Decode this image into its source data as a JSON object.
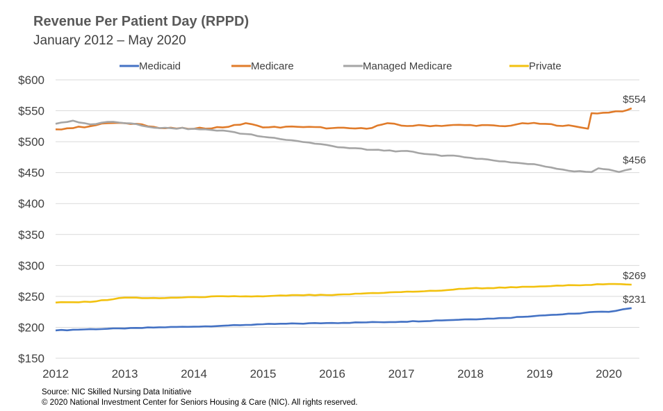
{
  "title": "Revenue Per Patient Day (RPPD)",
  "subtitle": "January  2012 – May 2020",
  "source_line": "Source: NIC Skilled Nursing Data Initiative",
  "copyright_line": "© 2020 National Investment Center for Seniors Housing & Care (NIC).  All rights reserved.",
  "chart_data": {
    "type": "line",
    "title": "Revenue Per Patient Day (RPPD)",
    "subtitle": "January  2012 – May 2020",
    "x_start": "2012-01",
    "x_end": "2020-05",
    "x_ticks": [
      "2012",
      "2013",
      "2014",
      "2015",
      "2016",
      "2017",
      "2018",
      "2019",
      "2020"
    ],
    "y_ticks": [
      "$150",
      "$200",
      "$250",
      "$300",
      "$350",
      "$400",
      "$450",
      "$500",
      "$550",
      "$600"
    ],
    "ylim": [
      150,
      600
    ],
    "grid": true,
    "legend_position": "top",
    "series": [
      {
        "name": "Medicaid",
        "color": "#4472C4",
        "end_label": "$231",
        "values": [
          [
            2012.0,
            195
          ],
          [
            2012.5,
            197
          ],
          [
            2013.0,
            198
          ],
          [
            2013.5,
            200
          ],
          [
            2014.0,
            201
          ],
          [
            2014.5,
            203
          ],
          [
            2015.0,
            205
          ],
          [
            2015.5,
            206
          ],
          [
            2016.0,
            207
          ],
          [
            2016.5,
            208
          ],
          [
            2017.0,
            209
          ],
          [
            2017.5,
            211
          ],
          [
            2018.0,
            213
          ],
          [
            2018.5,
            215
          ],
          [
            2019.0,
            219
          ],
          [
            2019.5,
            222
          ],
          [
            2019.8,
            225
          ],
          [
            2020.0,
            225
          ],
          [
            2020.2,
            229
          ],
          [
            2020.33,
            231
          ]
        ]
      },
      {
        "name": "Medicare",
        "color": "#E07B2A",
        "end_label": "$554",
        "values": [
          [
            2012.0,
            520
          ],
          [
            2012.5,
            525
          ],
          [
            2012.75,
            530
          ],
          [
            2013.0,
            530
          ],
          [
            2013.25,
            528
          ],
          [
            2013.5,
            522
          ],
          [
            2014.0,
            521
          ],
          [
            2014.5,
            524
          ],
          [
            2014.75,
            530
          ],
          [
            2015.0,
            523
          ],
          [
            2015.5,
            524
          ],
          [
            2016.0,
            522
          ],
          [
            2016.5,
            521
          ],
          [
            2016.8,
            530
          ],
          [
            2017.0,
            526
          ],
          [
            2017.5,
            526
          ],
          [
            2018.0,
            527
          ],
          [
            2018.5,
            525
          ],
          [
            2018.75,
            530
          ],
          [
            2019.0,
            529
          ],
          [
            2019.5,
            525
          ],
          [
            2019.7,
            521
          ],
          [
            2019.75,
            546
          ],
          [
            2020.0,
            547
          ],
          [
            2020.2,
            549
          ],
          [
            2020.33,
            554
          ]
        ]
      },
      {
        "name": "Managed Medicare",
        "color": "#A5A5A5",
        "end_label": "$456",
        "values": [
          [
            2012.0,
            529
          ],
          [
            2012.25,
            534
          ],
          [
            2012.5,
            528
          ],
          [
            2012.75,
            532
          ],
          [
            2013.0,
            530
          ],
          [
            2013.5,
            522
          ],
          [
            2014.0,
            521
          ],
          [
            2014.5,
            517
          ],
          [
            2015.0,
            508
          ],
          [
            2015.5,
            501
          ],
          [
            2016.0,
            493
          ],
          [
            2016.5,
            487
          ],
          [
            2017.0,
            485
          ],
          [
            2017.5,
            479
          ],
          [
            2018.0,
            474
          ],
          [
            2018.5,
            468
          ],
          [
            2019.0,
            462
          ],
          [
            2019.5,
            452
          ],
          [
            2019.75,
            451
          ],
          [
            2019.85,
            457
          ],
          [
            2020.0,
            455
          ],
          [
            2020.15,
            451
          ],
          [
            2020.33,
            456
          ]
        ]
      },
      {
        "name": "Private",
        "color": "#F2C10F",
        "end_label": "$269",
        "values": [
          [
            2012.0,
            240
          ],
          [
            2012.5,
            241
          ],
          [
            2013.0,
            248
          ],
          [
            2013.5,
            247
          ],
          [
            2014.0,
            249
          ],
          [
            2014.5,
            250
          ],
          [
            2015.0,
            250
          ],
          [
            2015.5,
            252
          ],
          [
            2016.0,
            252
          ],
          [
            2016.5,
            255
          ],
          [
            2017.0,
            257
          ],
          [
            2017.5,
            259
          ],
          [
            2018.0,
            263
          ],
          [
            2018.5,
            264
          ],
          [
            2019.0,
            266
          ],
          [
            2019.5,
            268
          ],
          [
            2020.0,
            270
          ],
          [
            2020.33,
            269
          ]
        ]
      }
    ]
  }
}
